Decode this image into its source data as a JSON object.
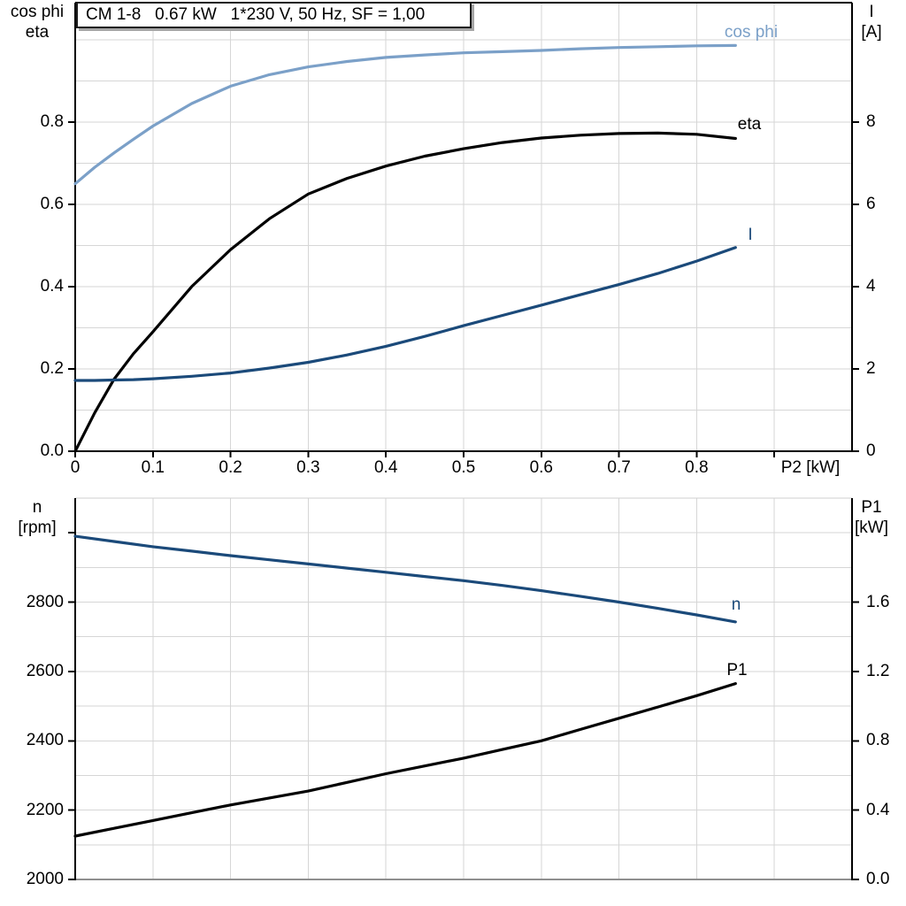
{
  "title": {
    "text": "CM 1-8   0.67 kW   1*230 V, 50 Hz, SF = 1,00"
  },
  "colors": {
    "light_blue": "#7ba0c8",
    "dark_blue": "#1b4a7a",
    "black": "#000000",
    "grid": "#d6d6d6",
    "frame_top_gray": "#cfcfcf",
    "frame_bottom_gray": "#8f8f8f",
    "shadow": "#a6a6a6"
  },
  "chart_data": [
    {
      "type": "line",
      "name": "motor-electrical-curves",
      "title": "CM 1-8   0.67 kW   1*230 V, 50 Hz, SF = 1,00",
      "x_axis": {
        "label": "P2 [kW]",
        "range": [
          0,
          1.0
        ],
        "tick_values": [
          0,
          0.1,
          0.2,
          0.3,
          0.4,
          0.5,
          0.6,
          0.7,
          0.8,
          0.9
        ],
        "tick_labels": [
          "0",
          "0.1",
          "0.2",
          "0.3",
          "0.4",
          "0.5",
          "0.6",
          "0.7",
          "0.8",
          ""
        ],
        "grid_values": [
          0.1,
          0.2,
          0.3,
          0.4,
          0.5,
          0.6,
          0.7,
          0.8,
          0.9
        ]
      },
      "left_axis": {
        "label_lines": [
          "cos phi",
          "eta"
        ],
        "range": [
          0,
          1.09
        ],
        "tick_values": [
          0,
          0.2,
          0.4,
          0.6,
          0.8
        ],
        "tick_labels": [
          "0.0",
          "0.2",
          "0.4",
          "0.6",
          "0.8"
        ],
        "grid_values": [
          0.1,
          0.2,
          0.3,
          0.4,
          0.5,
          0.6,
          0.7,
          0.8,
          0.9,
          1.0
        ]
      },
      "right_axis": {
        "label_lines": [
          "I",
          "[A]"
        ],
        "range": [
          0,
          10.9
        ],
        "tick_values": [
          0,
          2,
          4,
          6,
          8
        ],
        "tick_labels": [
          "0",
          "2",
          "4",
          "6",
          "8"
        ]
      },
      "x": [
        0,
        0.025,
        0.05,
        0.075,
        0.1,
        0.15,
        0.2,
        0.25,
        0.3,
        0.35,
        0.4,
        0.45,
        0.5,
        0.55,
        0.6,
        0.65,
        0.7,
        0.75,
        0.8,
        0.85
      ],
      "series": [
        {
          "name": "cos phi",
          "label": "cos phi",
          "axis": "left",
          "color": "#7ba0c8",
          "values": [
            0.65,
            0.69,
            0.725,
            0.758,
            0.79,
            0.845,
            0.887,
            0.915,
            0.934,
            0.947,
            0.957,
            0.963,
            0.968,
            0.971,
            0.974,
            0.978,
            0.981,
            0.983,
            0.985,
            0.986
          ]
        },
        {
          "name": "eta",
          "label": "eta",
          "axis": "left",
          "color": "#000000",
          "values": [
            0,
            0.093,
            0.175,
            0.237,
            0.29,
            0.4,
            0.49,
            0.565,
            0.625,
            0.663,
            0.693,
            0.717,
            0.735,
            0.75,
            0.761,
            0.768,
            0.772,
            0.773,
            0.77,
            0.76
          ]
        },
        {
          "name": "I",
          "label": "I",
          "axis": "right",
          "color": "#1b4a7a",
          "values": [
            1.72,
            1.72,
            1.73,
            1.74,
            1.76,
            1.82,
            1.9,
            2.02,
            2.16,
            2.34,
            2.55,
            2.79,
            3.05,
            3.3,
            3.55,
            3.8,
            4.05,
            4.32,
            4.62,
            4.95
          ]
        }
      ]
    },
    {
      "type": "line",
      "name": "speed-and-input-power-curves",
      "x_axis": {
        "label": "",
        "range": [
          0,
          1.0
        ],
        "tick_values": [],
        "tick_labels": [],
        "grid_values": [
          0.1,
          0.2,
          0.3,
          0.4,
          0.5,
          0.6,
          0.7,
          0.8,
          0.9
        ]
      },
      "left_axis": {
        "label_lines": [
          "n",
          "[rpm]"
        ],
        "range": [
          2000,
          3100
        ],
        "tick_values": [
          2000,
          2200,
          2400,
          2600,
          2800,
          3000
        ],
        "tick_labels": [
          "2000",
          "2200",
          "2400",
          "2600",
          "2800",
          ""
        ],
        "grid_values": [
          2100,
          2200,
          2300,
          2400,
          2500,
          2600,
          2700,
          2800,
          2900,
          3000
        ]
      },
      "right_axis": {
        "label_lines": [
          "P1",
          "[kW]"
        ],
        "range": [
          0,
          2.2
        ],
        "tick_values": [
          0,
          0.4,
          0.8,
          1.2,
          1.6
        ],
        "tick_labels": [
          "0.0",
          "0.4",
          "0.8",
          "1.2",
          "1.6"
        ]
      },
      "x": [
        0,
        0.05,
        0.1,
        0.15,
        0.2,
        0.25,
        0.3,
        0.35,
        0.4,
        0.45,
        0.5,
        0.55,
        0.6,
        0.65,
        0.7,
        0.75,
        0.8,
        0.85
      ],
      "series": [
        {
          "name": "n",
          "label": "n",
          "axis": "left",
          "color": "#1b4a7a",
          "values": [
            2990,
            2975,
            2960,
            2947,
            2934,
            2922,
            2910,
            2898,
            2886,
            2874,
            2862,
            2848,
            2833,
            2817,
            2800,
            2782,
            2763,
            2743
          ]
        },
        {
          "name": "P1",
          "label": "P1",
          "axis": "right",
          "color": "#000000",
          "values": [
            0.25,
            0.295,
            0.34,
            0.385,
            0.43,
            0.47,
            0.51,
            0.56,
            0.61,
            0.655,
            0.7,
            0.75,
            0.8,
            0.865,
            0.93,
            0.995,
            1.06,
            1.13
          ]
        }
      ]
    }
  ]
}
